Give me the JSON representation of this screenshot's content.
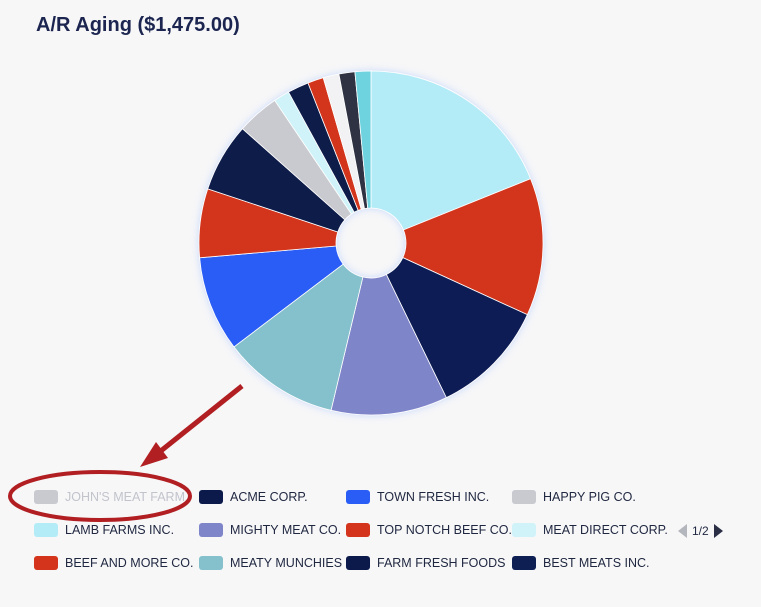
{
  "title": "A/R Aging ($1,475.00)",
  "colors": {
    "background": "#f7f7f8",
    "annotation": "#b11f22",
    "hidden_legend_text": "#c2c4cc"
  },
  "chart_data": {
    "type": "pie",
    "variant": "donut",
    "title": "A/R Aging ($1,475.00)",
    "slices": [
      {
        "label": "LAMB FARMS INC.",
        "percent": 19.0,
        "color": "#b3ecf7"
      },
      {
        "label": "TOP NOTCH BEEF CO.",
        "percent": 13.0,
        "color": "#d3341b"
      },
      {
        "label": "BEST MEATS INC.",
        "percent": 11.0,
        "color": "#0e1f54"
      },
      {
        "label": "MIGHTY MEAT CO.",
        "percent": 11.0,
        "color": "#7f85c9"
      },
      {
        "label": "MEATY MUNCHIES",
        "percent": 11.0,
        "color": "#85c1cc"
      },
      {
        "label": "TOWN FRESH INC.",
        "percent": 9.0,
        "color": "#2a5df5"
      },
      {
        "label": "BEEF AND MORE CO.",
        "percent": 6.5,
        "color": "#d3341b"
      },
      {
        "label": "ACME CORP.",
        "percent": 6.5,
        "color": "#0b1a4a"
      },
      {
        "label": "HAPPY PIG CO.",
        "percent": 4.0,
        "color": "#c9c9d0"
      },
      {
        "label": "MEAT DIRECT CORP.",
        "percent": 1.5,
        "color": "#cff3f8"
      },
      {
        "label": "FARM FRESH FOODS",
        "percent": 2.0,
        "color": "#0b1a4a"
      },
      {
        "label": "",
        "percent": 1.5,
        "color": "#d3341b"
      },
      {
        "label": "",
        "percent": 1.5,
        "color": "#f2f2f5"
      },
      {
        "label": "",
        "percent": 1.5,
        "color": "#2e3142"
      },
      {
        "label": "",
        "percent": 1.5,
        "color": "#6ed3df"
      }
    ],
    "legend": {
      "placement": "bottom",
      "page": "1/2",
      "entries": [
        {
          "label": "JOHN'S MEAT FARM",
          "color": "#c9c9d0",
          "hidden": true
        },
        {
          "label": "ACME CORP.",
          "color": "#0b1a4a",
          "hidden": false
        },
        {
          "label": "TOWN FRESH INC.",
          "color": "#2a5df5",
          "hidden": false
        },
        {
          "label": "HAPPY PIG CO.",
          "color": "#c9c9d0",
          "hidden": false
        },
        {
          "label": "LAMB FARMS INC.",
          "color": "#b3ecf7",
          "hidden": false
        },
        {
          "label": "MIGHTY MEAT CO.",
          "color": "#7f85c9",
          "hidden": false
        },
        {
          "label": "TOP NOTCH BEEF CO.",
          "color": "#d3341b",
          "hidden": false
        },
        {
          "label": "MEAT DIRECT CORP.",
          "color": "#cff3f8",
          "hidden": false
        },
        {
          "label": "BEEF AND MORE CO.",
          "color": "#d3341b",
          "hidden": false
        },
        {
          "label": "MEATY MUNCHIES",
          "color": "#85c1cc",
          "hidden": false
        },
        {
          "label": "FARM FRESH FOODS",
          "color": "#0b1a4a",
          "hidden": false
        },
        {
          "label": "BEST MEATS INC.",
          "color": "#0e1f54",
          "hidden": false
        }
      ]
    }
  }
}
